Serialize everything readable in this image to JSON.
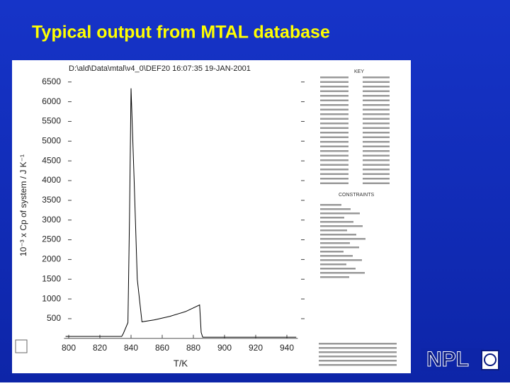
{
  "slide": {
    "title": "Typical output from MTAL database",
    "logo": "NPL"
  },
  "chart_data": {
    "type": "line",
    "header": "D:\\ald\\Data\\mtal\\v4_0\\DEF20  16:07:35  19-JAN-2001",
    "x_label": "T/K",
    "y_label": "10⁻³ x Cp of system / J K⁻¹",
    "key_title": "KEY",
    "constraints_title": "CONSTRAINTS",
    "x": [
      798,
      834,
      835,
      838,
      839,
      840,
      842,
      844,
      847,
      855,
      865,
      875,
      884,
      885,
      886,
      946
    ],
    "series": [
      {
        "name": "Cp",
        "color": "#000000",
        "values": [
          50,
          50,
          120,
          400,
          3000,
          6340,
          4000,
          1500,
          420,
          470,
          560,
          680,
          850,
          150,
          30,
          30
        ]
      }
    ],
    "xlim": [
      797,
      947
    ],
    "xticks": [
      800,
      820,
      840,
      860,
      880,
      900,
      920,
      940
    ],
    "ylim": [
      0,
      6700
    ],
    "yticks": [
      500,
      1000,
      1500,
      2000,
      2500,
      3000,
      3500,
      4000,
      4500,
      5000,
      5500,
      6000,
      6500
    ]
  }
}
